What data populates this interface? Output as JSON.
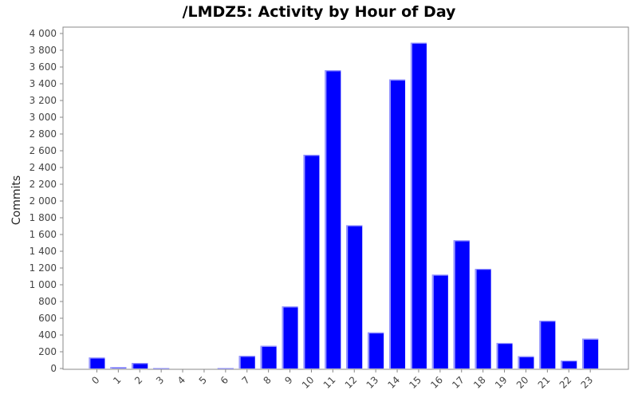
{
  "chart_data": {
    "type": "bar",
    "title": "/LMDZ5: Activity by Hour of Day",
    "xlabel": "",
    "ylabel": "Commits",
    "ylim": [
      0,
      4000
    ],
    "yticks": [
      0,
      200,
      400,
      600,
      800,
      1000,
      1200,
      1400,
      1600,
      1800,
      2000,
      2200,
      2400,
      2600,
      2800,
      3000,
      3200,
      3400,
      3600,
      3800,
      4000
    ],
    "ytick_labels": [
      "0",
      "200",
      "400",
      "600",
      "800",
      "1 000",
      "1 200",
      "1 400",
      "1 600",
      "1 800",
      "2 000",
      "2 200",
      "2 400",
      "2 600",
      "2 800",
      "3 000",
      "3 200",
      "3 400",
      "3 600",
      "3 800",
      "4 000"
    ],
    "categories": [
      "0",
      "1",
      "2",
      "3",
      "4",
      "5",
      "6",
      "7",
      "8",
      "9",
      "10",
      "11",
      "12",
      "13",
      "14",
      "15",
      "16",
      "17",
      "18",
      "19",
      "20",
      "21",
      "22",
      "23"
    ],
    "values": [
      130,
      15,
      65,
      5,
      0,
      0,
      5,
      150,
      270,
      740,
      2550,
      3560,
      1710,
      430,
      3450,
      3890,
      1120,
      1530,
      1190,
      305,
      145,
      570,
      95,
      355
    ],
    "grid": false,
    "legend": "none",
    "colors": {
      "bar": "#0000ff",
      "bar_highlight": "#9999ff",
      "axis": "#888888",
      "background": "#ffffff"
    }
  }
}
